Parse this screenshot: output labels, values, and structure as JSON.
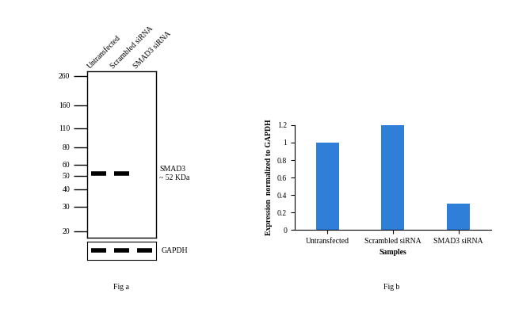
{
  "blot": {
    "caption": "Fig a",
    "lanes": [
      "Untransfected",
      "Scrambled siRNA",
      "SMAD3 siRNA"
    ],
    "markers": [
      260,
      160,
      110,
      80,
      60,
      50,
      40,
      30,
      20
    ],
    "ylim": [
      18,
      280
    ],
    "bands": [
      {
        "label": "SMAD3\n~ 52 KDa",
        "mw": 52,
        "lanes": [
          true,
          true,
          false
        ]
      }
    ],
    "loading_control": {
      "label": "GAPDH",
      "lanes": [
        true,
        true,
        true
      ]
    }
  },
  "chart_data": {
    "type": "bar",
    "caption": "Fig b",
    "categories": [
      "Untransfected",
      "Scrambled siRNA",
      "SMAD3 siRNA"
    ],
    "values": [
      1.0,
      1.2,
      0.3
    ],
    "color": "#2f7ed8",
    "x_label": "Samples",
    "y_label": "Expression  normalized to GAPDH",
    "ylim": [
      0,
      1.2
    ],
    "yticks": [
      0,
      0.2,
      0.4,
      0.6,
      0.8,
      1,
      1.2
    ],
    "grid": false
  }
}
